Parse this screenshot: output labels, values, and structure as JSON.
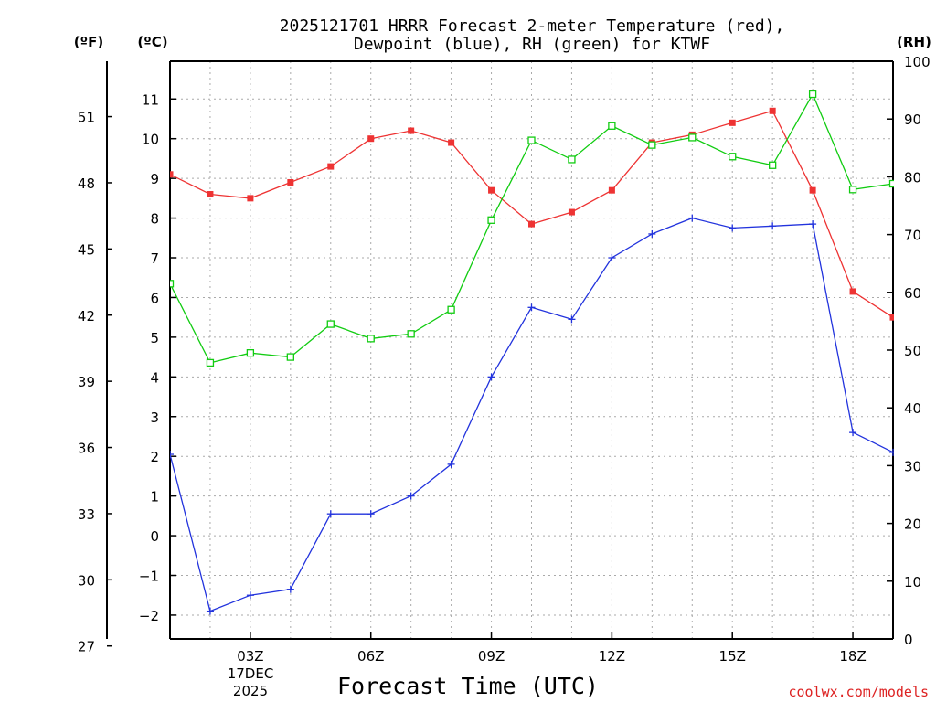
{
  "chart_data": {
    "type": "line",
    "title_line1": "2025121701 HRRR Forecast 2-meter Temperature (red),",
    "title_line2": "Dewpoint (blue), RH (green) for KTWF",
    "xlabel": "Forecast Time (UTC)",
    "units": {
      "fahrenheit": "(ºF)",
      "celsius": "(ºC)",
      "rh": "(RH)"
    },
    "x": [
      1,
      2,
      3,
      4,
      5,
      6,
      7,
      8,
      9,
      10,
      11,
      12,
      13,
      14,
      15,
      16,
      17,
      18,
      19
    ],
    "xlim": [
      1,
      19
    ],
    "x_ticks": [
      {
        "x": 3,
        "label": "03Z"
      },
      {
        "x": 6,
        "label": "06Z"
      },
      {
        "x": 9,
        "label": "09Z"
      },
      {
        "x": 12,
        "label": "12Z"
      },
      {
        "x": 15,
        "label": "15Z"
      },
      {
        "x": 18,
        "label": "18Z"
      }
    ],
    "date_label": {
      "line1": "17DEC",
      "line2": "2025"
    },
    "celsius_axis": {
      "ylim": [
        -2.6,
        11.95
      ],
      "ticks": [
        -2,
        -1,
        0,
        1,
        2,
        3,
        4,
        5,
        6,
        7,
        8,
        9,
        10,
        11
      ],
      "tick_labels": [
        "−2",
        "−1",
        "0",
        "1",
        "2",
        "3",
        "4",
        "5",
        "6",
        "7",
        "8",
        "9",
        "10",
        "11"
      ]
    },
    "fahrenheit_axis": {
      "ticks": [
        27,
        30,
        33,
        36,
        39,
        42,
        45,
        48,
        51
      ],
      "tick_labels": [
        "27",
        "30",
        "33",
        "36",
        "39",
        "42",
        "45",
        "48",
        "51"
      ]
    },
    "rh_axis": {
      "ylim": [
        0,
        100
      ],
      "ticks": [
        0,
        10,
        20,
        30,
        40,
        50,
        60,
        70,
        80,
        90,
        100
      ],
      "tick_labels": [
        "0",
        "10",
        "20",
        "30",
        "40",
        "50",
        "60",
        "70",
        "80",
        "90",
        "100"
      ]
    },
    "series": [
      {
        "name": "2-meter Temperature",
        "axis": "celsius",
        "color": "#ee3333",
        "marker": "filled-square",
        "values": [
          9.1,
          8.6,
          8.5,
          8.9,
          9.3,
          10.0,
          10.2,
          9.9,
          8.7,
          7.85,
          8.15,
          8.7,
          9.9,
          10.1,
          10.4,
          10.7,
          8.7,
          6.15,
          5.5
        ]
      },
      {
        "name": "Dewpoint",
        "axis": "celsius",
        "color": "#2233dd",
        "marker": "plus",
        "values": [
          2.05,
          -1.9,
          -1.5,
          -1.35,
          0.55,
          0.55,
          1.0,
          1.8,
          4.0,
          5.75,
          5.45,
          7.0,
          7.6,
          8.0,
          7.75,
          7.8,
          7.85,
          2.6,
          2.1
        ]
      },
      {
        "name": "RH",
        "axis": "rh",
        "color": "#11cc11",
        "marker": "open-square",
        "values": [
          61.5,
          47.8,
          49.5,
          48.8,
          54.5,
          52.0,
          52.8,
          57.0,
          72.5,
          86.3,
          83.0,
          88.8,
          85.5,
          86.8,
          83.5,
          82.0,
          94.3,
          77.8,
          78.8
        ]
      }
    ]
  },
  "watermark": {
    "text": "coolwx.com/models",
    "color": "#dd2222"
  }
}
